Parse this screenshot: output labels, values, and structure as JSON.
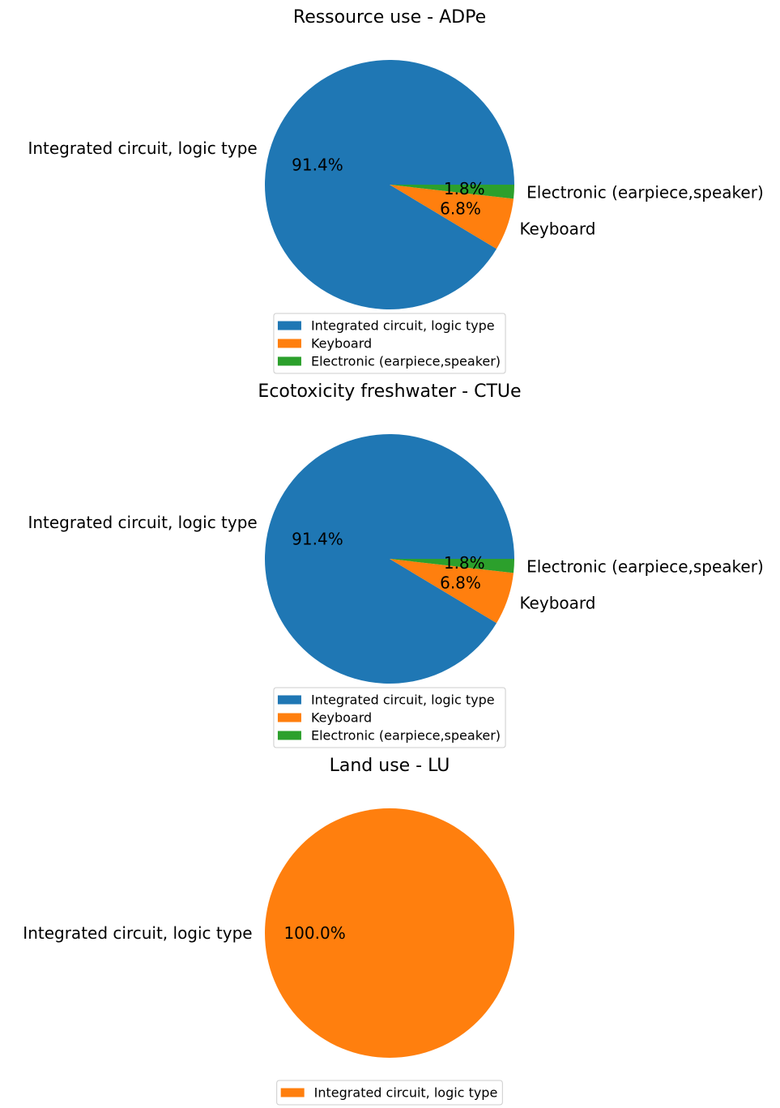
{
  "chart_data": [
    {
      "type": "pie",
      "title": "Ressource use - ADPe",
      "slices": [
        {
          "label": "Integrated circuit,  logic type",
          "percent": 91.4,
          "pct_text": "91.4%",
          "color": "#1f77b4"
        },
        {
          "label": "Keyboard",
          "percent": 6.8,
          "pct_text": "6.8%",
          "color": "#ff7f0e"
        },
        {
          "label": "Electronic (earpiece,speaker)",
          "percent": 1.8,
          "pct_text": "1.8%",
          "color": "#2ca02c"
        }
      ],
      "legend": {
        "placement": "lower-center",
        "entries": [
          {
            "label": "Integrated circuit,  logic type",
            "color": "#1f77b4"
          },
          {
            "label": "Keyboard",
            "color": "#ff7f0e"
          },
          {
            "label": "Electronic (earpiece,speaker)",
            "color": "#2ca02c"
          }
        ]
      }
    },
    {
      "type": "pie",
      "title": "Ecotoxicity freshwater - CTUe",
      "slices": [
        {
          "label": "Integrated circuit,  logic type",
          "percent": 91.4,
          "pct_text": "91.4%",
          "color": "#1f77b4"
        },
        {
          "label": "Keyboard",
          "percent": 6.8,
          "pct_text": "6.8%",
          "color": "#ff7f0e"
        },
        {
          "label": "Electronic (earpiece,speaker)",
          "percent": 1.8,
          "pct_text": "1.8%",
          "color": "#2ca02c"
        }
      ],
      "legend": {
        "placement": "lower-center",
        "entries": [
          {
            "label": "Integrated circuit,  logic type",
            "color": "#1f77b4"
          },
          {
            "label": "Keyboard",
            "color": "#ff7f0e"
          },
          {
            "label": "Electronic (earpiece,speaker)",
            "color": "#2ca02c"
          }
        ]
      }
    },
    {
      "type": "pie",
      "title": "Land use - LU",
      "slices": [
        {
          "label": "Integrated circuit,  logic type",
          "percent": 100.0,
          "pct_text": "100.0%",
          "color": "#ff7f0e"
        }
      ],
      "legend": {
        "placement": "lower-center",
        "entries": [
          {
            "label": "Integrated circuit,  logic type",
            "color": "#ff7f0e"
          }
        ]
      }
    }
  ]
}
